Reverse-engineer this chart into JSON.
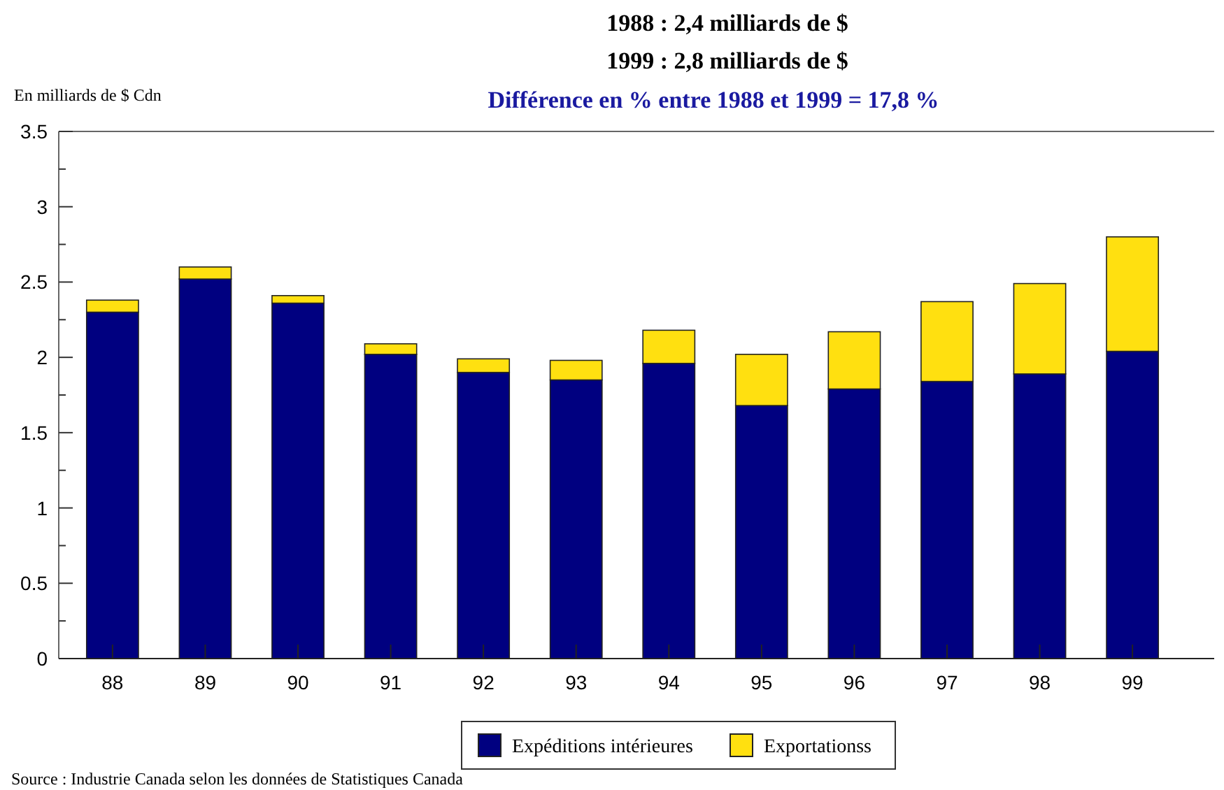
{
  "chart_data": {
    "type": "bar",
    "title": "1988 : 2,4 milliards de $",
    "subtitle": "1999 : 2,8 milliards de $",
    "ylabel": "En milliards de $ Cdn",
    "annotations": [
      "Différence en %  entre  1988 et 1999 = 17,8 %",
      "Source : Industrie Canada selon les données de Statistiques Canada"
    ],
    "categories": [
      "88",
      "89",
      "90",
      "91",
      "92",
      "93",
      "94",
      "95",
      "96",
      "97",
      "98",
      "99"
    ],
    "stacked": true,
    "series": [
      {
        "name": "Expéditions intérieures",
        "color": "#000080",
        "values": [
          2.3,
          2.52,
          2.36,
          2.02,
          1.9,
          1.85,
          1.96,
          1.68,
          1.79,
          1.84,
          1.89,
          2.04
        ]
      },
      {
        "name": "Exportationss",
        "color": "#ffe010",
        "values": [
          0.08,
          0.08,
          0.05,
          0.07,
          0.09,
          0.13,
          0.22,
          0.34,
          0.38,
          0.53,
          0.6,
          0.76
        ]
      }
    ],
    "ylim": [
      0,
      3.5
    ],
    "yticks": [
      0,
      {
        "value": 0.25,
        "label": null
      },
      0.5,
      {
        "value": 0.75,
        "label": null
      },
      1,
      {
        "value": 1.25,
        "label": null
      },
      1.5,
      {
        "value": 1.75,
        "label": null
      },
      2,
      {
        "value": 2.25,
        "label": null
      },
      2.5,
      {
        "value": 2.75,
        "label": null
      },
      3,
      {
        "value": 3.25,
        "label": null
      },
      3.5
    ],
    "grid": false,
    "legend": "bottom"
  }
}
